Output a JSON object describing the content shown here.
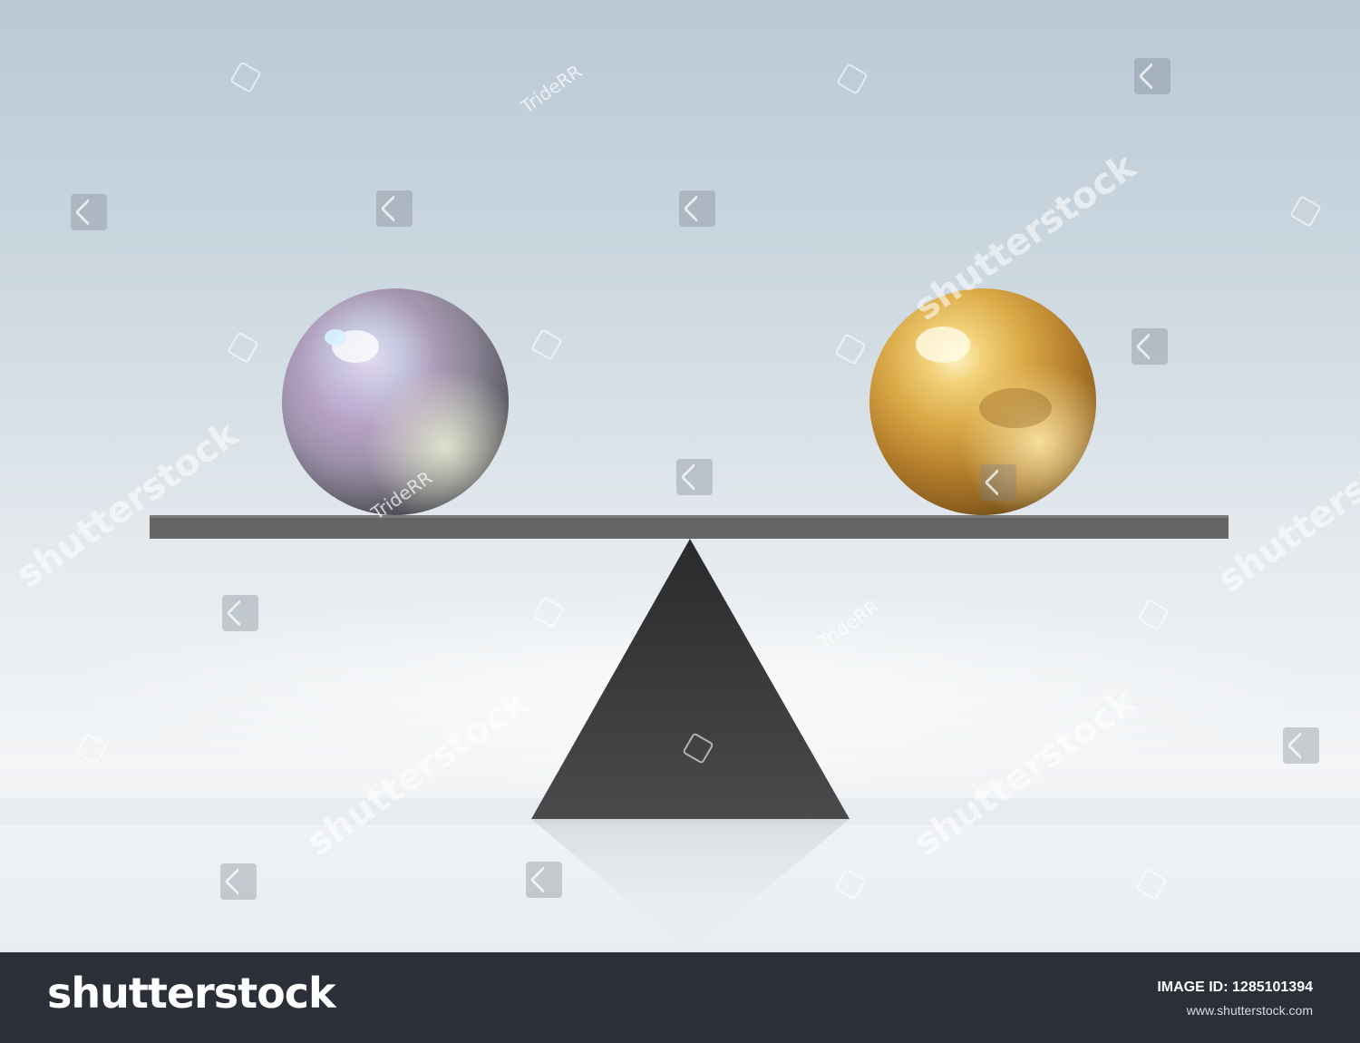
{
  "watermark": {
    "brand": "shutterstock",
    "author": "TrideRR"
  },
  "footer": {
    "logo": "shutterstock",
    "image_id_label": "IMAGE ID:",
    "image_id_value": "1285101394",
    "site": "www.shutterstock.com"
  },
  "colors": {
    "background_top": "#b9c9d6",
    "background_bottom": "#f3f5f7",
    "plank": "#656566",
    "fulcrum": "#3a3a3c",
    "footer_bg": "#2b2f38",
    "pearl_sphere": "#a79fb0",
    "gold_sphere": "#d4a43e"
  },
  "scene": {
    "left_object": "pearl-sphere",
    "right_object": "gold-sphere",
    "balance_state": "level"
  }
}
